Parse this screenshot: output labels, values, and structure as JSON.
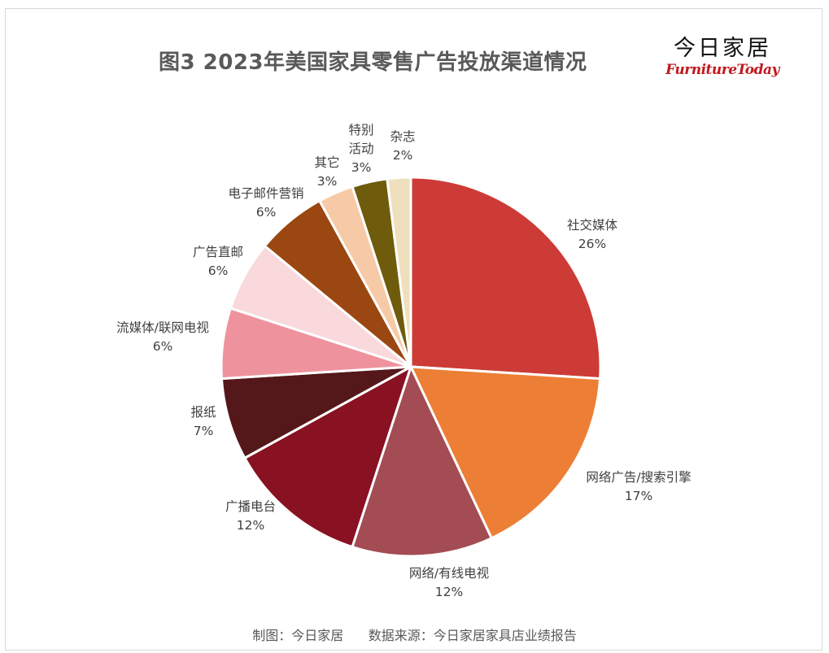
{
  "title": "图3  2023年美国家具零售广告投放渠道情况",
  "logo": {
    "cn": "今日家居",
    "en": "FurnitureToday"
  },
  "footer": "制图：今日家居      数据来源：今日家居家具店业绩报告",
  "chart_data": {
    "type": "pie",
    "start_angle_deg": 0,
    "direction": "clockwise",
    "slices": [
      {
        "lines": [
          "社交媒体"
        ],
        "pct": "26%",
        "value": 26,
        "color": "#cc3b36"
      },
      {
        "lines": [
          "网络广告/搜索引擎"
        ],
        "pct": "17%",
        "value": 17,
        "color": "#ec7f35"
      },
      {
        "lines": [
          "网络/有线电视"
        ],
        "pct": "12%",
        "value": 12,
        "color": "#a34c53"
      },
      {
        "lines": [
          "广播电台"
        ],
        "pct": "12%",
        "value": 12,
        "color": "#881122"
      },
      {
        "lines": [
          "报纸"
        ],
        "pct": "7%",
        "value": 7,
        "color": "#54181a"
      },
      {
        "lines": [
          "流媒体/联网电视"
        ],
        "pct": "6%",
        "value": 6,
        "color": "#ee939d"
      },
      {
        "lines": [
          "广告直邮"
        ],
        "pct": "6%",
        "value": 6,
        "color": "#f9d9dc"
      },
      {
        "lines": [
          "电子邮件营销"
        ],
        "pct": "6%",
        "value": 6,
        "color": "#9b4711"
      },
      {
        "lines": [
          "其它"
        ],
        "pct": "3%",
        "value": 3,
        "color": "#f6caa6"
      },
      {
        "lines": [
          "特别",
          "活动"
        ],
        "pct": "3%",
        "value": 3,
        "color": "#6e5b0c"
      },
      {
        "lines": [
          "杂志"
        ],
        "pct": "2%",
        "value": 2,
        "color": "#eee0bc"
      }
    ]
  }
}
